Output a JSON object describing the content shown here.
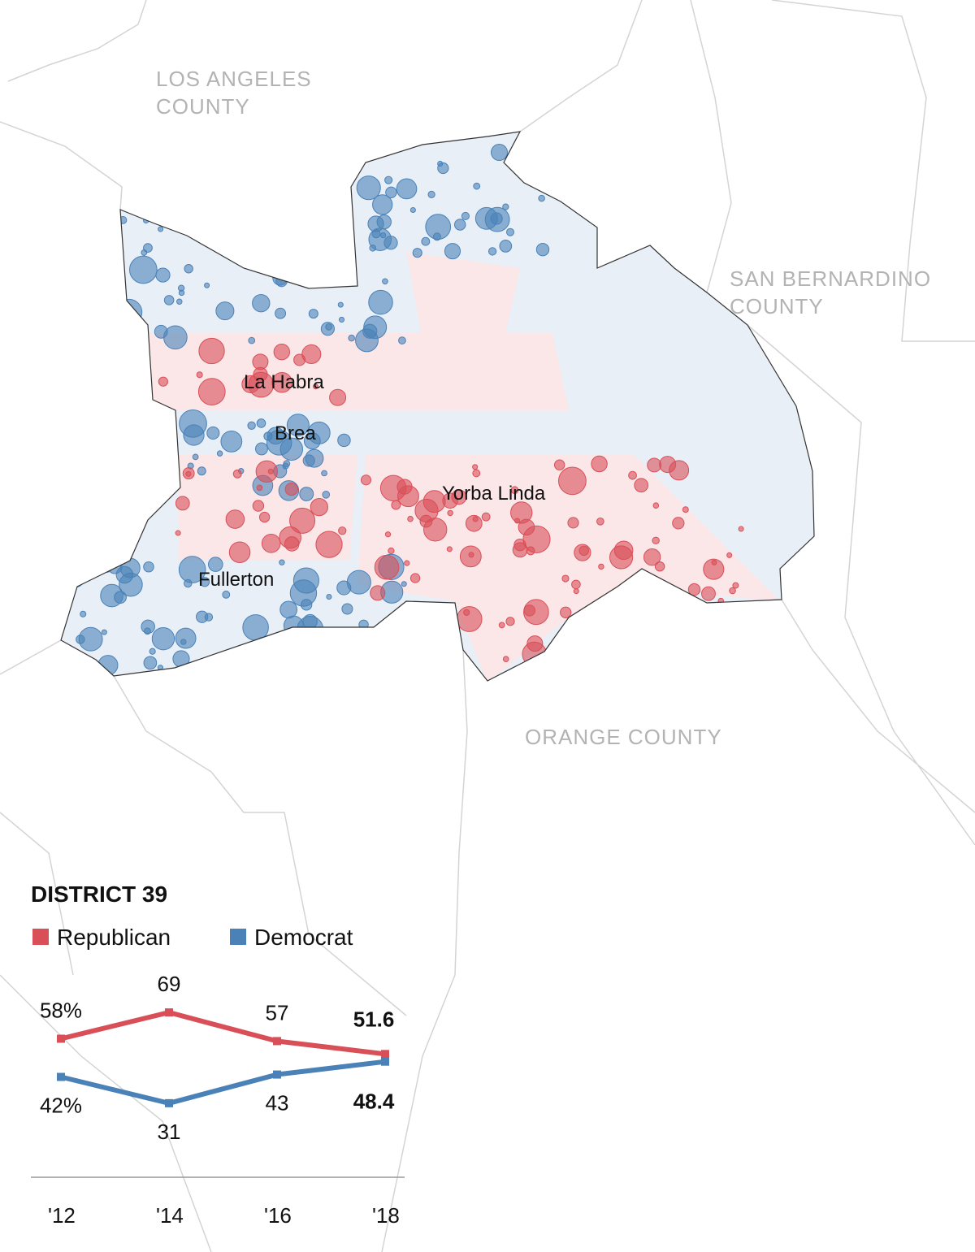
{
  "map_labels": {
    "los_angeles": [
      "LOS ANGELES",
      "COUNTY"
    ],
    "san_bernardino": [
      "SAN BERNARDINO",
      "COUNTY"
    ],
    "orange": "ORANGE COUNTY",
    "cities": [
      "La Habra",
      "Brea",
      "Yorba Linda",
      "Fullerton"
    ]
  },
  "chart_data": {
    "type": "line",
    "title": "DISTRICT 39",
    "categories": [
      "'12",
      "'14",
      "'16",
      "'18"
    ],
    "series": [
      {
        "name": "Republican",
        "color": "#d94f58",
        "values": [
          58,
          69,
          57,
          51.6
        ],
        "value_labels": [
          "58%",
          "69",
          "57",
          "51.6"
        ]
      },
      {
        "name": "Democrat",
        "color": "#4a82b8",
        "values": [
          42,
          31,
          43,
          48.4
        ],
        "value_labels": [
          "42%",
          "31",
          "43",
          "48.4"
        ]
      }
    ],
    "ylim": [
      0,
      100
    ]
  }
}
